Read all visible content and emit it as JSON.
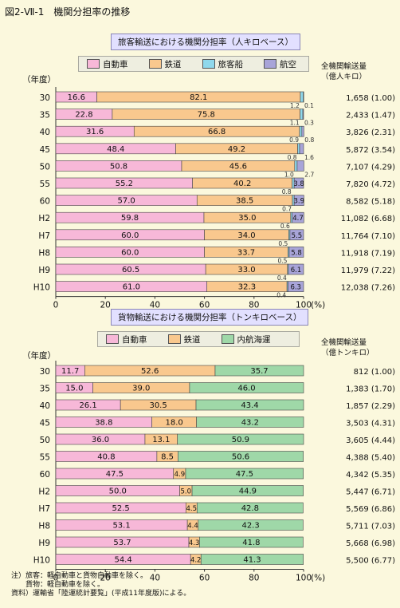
{
  "figure_title": "図2-Ⅶ-1　機関分担率の推移",
  "colors": {
    "car": "#f7b8d8",
    "rail": "#f9c88e",
    "ship_passenger": "#8fd8ec",
    "air": "#a8a4d8",
    "coastal": "#9fd8a8"
  },
  "chart_data": [
    {
      "type": "bar",
      "orientation": "horizontal-stacked",
      "title": "旅客輸送における機関分担率（人キロベース）",
      "ylabel": "（年度）",
      "xlabel": "(%)",
      "right_header": [
        "全機関輸送量",
        "（億人キロ）"
      ],
      "xlim": [
        0,
        100
      ],
      "xticks": [
        "0",
        "20",
        "40",
        "60",
        "80",
        "100"
      ],
      "categories": [
        "30",
        "35",
        "40",
        "45",
        "50",
        "55",
        "60",
        "H2",
        "H7",
        "H8",
        "H9",
        "H10"
      ],
      "series": [
        {
          "name": "自動車",
          "values": [
            16.6,
            22.8,
            31.6,
            48.4,
            50.8,
            55.2,
            57.0,
            59.8,
            60.0,
            60.0,
            60.5,
            61.0
          ],
          "labels": [
            "16.6",
            "22.8",
            "31.6",
            "48.4",
            "50.8",
            "55.2",
            "57.0",
            "59.8",
            "60.0",
            "60.0",
            "60.5",
            "61.0"
          ]
        },
        {
          "name": "鉄道",
          "values": [
            82.1,
            75.8,
            66.8,
            49.2,
            45.6,
            40.2,
            38.5,
            35.0,
            34.0,
            33.7,
            33.0,
            32.3
          ],
          "labels": [
            "82.1",
            "75.8",
            "66.8",
            "49.2",
            "45.6",
            "40.2",
            "38.5",
            "35.0",
            "34.0",
            "33.7",
            "33.0",
            "32.3"
          ]
        },
        {
          "name": "旅客船",
          "values": [
            1.2,
            1.1,
            0.9,
            0.8,
            1.0,
            0.8,
            0.7,
            0.6,
            0.5,
            0.5,
            0.4,
            0.4
          ],
          "labels": [
            "1.2",
            "1.1",
            "0.9",
            "0.8",
            "1.0",
            "0.8",
            "0.7",
            "0.6",
            "0.5",
            "0.5",
            "0.4",
            "0.4"
          ]
        },
        {
          "name": "航空",
          "values": [
            0.1,
            0.3,
            0.8,
            1.6,
            2.7,
            3.8,
            3.9,
            4.7,
            5.5,
            5.8,
            6.1,
            6.3
          ],
          "labels": [
            "0.1",
            "0.3",
            "0.8",
            "1.6",
            "2.7",
            "3.8",
            "3.9",
            "4.7",
            "5.5",
            "5.8",
            "6.1",
            "6.3"
          ]
        }
      ],
      "totals": [
        "1,658 (1.00)",
        "2,433 (1.47)",
        "3,826 (2.31)",
        "5,872 (3.54)",
        "7,107 (4.29)",
        "7,820 (4.72)",
        "8,582 (5.18)",
        "11,082 (6.68)",
        "11,764 (7.10)",
        "11,918 (7.19)",
        "11,979 (7.22)",
        "12,038 (7.26)"
      ]
    },
    {
      "type": "bar",
      "orientation": "horizontal-stacked",
      "title": "貨物輸送における機関分担率（トンキロベース）",
      "ylabel": "（年度）",
      "xlabel": "(%)",
      "right_header": [
        "全機関輸送量",
        "（億トンキロ）"
      ],
      "xlim": [
        0,
        100
      ],
      "xticks": [
        "0",
        "20",
        "40",
        "60",
        "80",
        "100"
      ],
      "categories": [
        "30",
        "35",
        "40",
        "45",
        "50",
        "55",
        "60",
        "H2",
        "H7",
        "H8",
        "H9",
        "H10"
      ],
      "series": [
        {
          "name": "自動車",
          "values": [
            11.7,
            15.0,
            26.1,
            38.8,
            36.0,
            40.8,
            47.5,
            50.0,
            52.5,
            53.1,
            53.7,
            54.4
          ],
          "labels": [
            "11.7",
            "15.0",
            "26.1",
            "38.8",
            "36.0",
            "40.8",
            "47.5",
            "50.0",
            "52.5",
            "53.1",
            "53.7",
            "54.4"
          ]
        },
        {
          "name": "鉄道",
          "values": [
            52.6,
            39.0,
            30.5,
            18.0,
            13.1,
            8.5,
            4.9,
            5.0,
            4.5,
            4.4,
            4.3,
            4.2
          ],
          "labels": [
            "52.6",
            "39.0",
            "30.5",
            "18.0",
            "13.1",
            "8.5",
            "4.9",
            "5.0",
            "4.5",
            "4.4",
            "4.3",
            "4.2"
          ]
        },
        {
          "name": "内航海運",
          "values": [
            35.7,
            46.0,
            43.4,
            43.2,
            50.9,
            50.6,
            47.5,
            44.9,
            42.8,
            42.3,
            41.8,
            41.3
          ],
          "labels": [
            "35.7",
            "46.0",
            "43.4",
            "43.2",
            "50.9",
            "50.6",
            "47.5",
            "44.9",
            "42.8",
            "42.3",
            "41.8",
            "41.3"
          ]
        }
      ],
      "totals": [
        "812 (1.00)",
        "1,383 (1.70)",
        "1,857 (2.29)",
        "3,503 (4.31)",
        "3,605 (4.44)",
        "4,388 (5.40)",
        "4,342 (5.35)",
        "5,447 (6.71)",
        "5,569 (6.86)",
        "5,711 (7.03)",
        "5,668 (6.98)",
        "5,500 (6.77)"
      ]
    }
  ],
  "notes": [
    "注）旅客：軽自動車と貨物自動車を除く。",
    "　　貨物：軽自動車を除く。",
    "資料）運輸省「陸運統計要覧」(平成11年度版)による。"
  ]
}
